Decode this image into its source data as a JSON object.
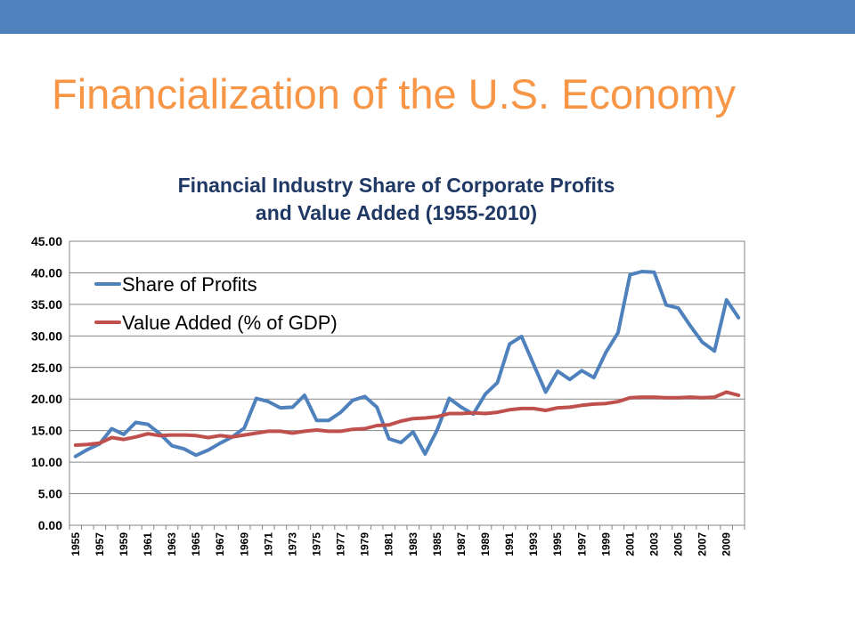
{
  "slide": {
    "title": "Financialization of the U.S. Economy",
    "accent_color": "#4f81bd",
    "title_color": "#f79646"
  },
  "chart_data": {
    "type": "line",
    "title_lines": [
      "Financial Industry Share of Corporate Profits",
      "and Value Added (1955-2010)"
    ],
    "xlabel": "",
    "ylabel": "",
    "ylim": [
      0,
      45
    ],
    "y_ticks": [
      "0.00",
      "5.00",
      "10.00",
      "15.00",
      "20.00",
      "25.00",
      "30.00",
      "35.00",
      "40.00",
      "45.00"
    ],
    "x": [
      1955,
      1956,
      1957,
      1958,
      1959,
      1960,
      1961,
      1962,
      1963,
      1964,
      1965,
      1966,
      1967,
      1968,
      1969,
      1970,
      1971,
      1972,
      1973,
      1974,
      1975,
      1976,
      1977,
      1978,
      1979,
      1980,
      1981,
      1982,
      1983,
      1984,
      1985,
      1986,
      1987,
      1988,
      1989,
      1990,
      1991,
      1992,
      1993,
      1994,
      1995,
      1996,
      1997,
      1998,
      1999,
      2000,
      2001,
      2002,
      2003,
      2004,
      2005,
      2006,
      2007,
      2008,
      2009,
      2010
    ],
    "x_tick_labels": [
      "1955",
      "1957",
      "1959",
      "1961",
      "1963",
      "1965",
      "1967",
      "1969",
      "1971",
      "1973",
      "1975",
      "1977",
      "1979",
      "1981",
      "1983",
      "1985",
      "1987",
      "1989",
      "1991",
      "1993",
      "1995",
      "1997",
      "1999",
      "2001",
      "2003",
      "2005",
      "2007",
      "2009"
    ],
    "grid": true,
    "legend_position": "top-left",
    "series": [
      {
        "name": "Share of Profits",
        "color": "#4f81bd",
        "values": [
          10.9,
          12.0,
          12.9,
          15.3,
          14.4,
          16.3,
          16.0,
          14.5,
          12.6,
          12.1,
          11.1,
          11.9,
          13.0,
          14.0,
          15.4,
          20.1,
          19.6,
          18.6,
          18.7,
          20.6,
          16.6,
          16.6,
          17.9,
          19.8,
          20.4,
          18.7,
          13.7,
          13.1,
          14.8,
          11.3,
          15.1,
          20.1,
          18.7,
          17.6,
          20.8,
          22.6,
          28.7,
          29.9,
          25.5,
          21.1,
          24.4,
          23.1,
          24.5,
          23.4,
          27.4,
          30.5,
          39.7,
          40.2,
          40.1,
          34.9,
          34.4,
          31.6,
          29.0,
          27.6,
          35.7,
          32.9
        ]
      },
      {
        "name": "Value Added (% of GDP)",
        "color": "#c0504d",
        "values": [
          12.7,
          12.8,
          13.0,
          13.9,
          13.6,
          14.0,
          14.5,
          14.2,
          14.3,
          14.3,
          14.2,
          13.9,
          14.2,
          14.0,
          14.3,
          14.6,
          14.9,
          14.9,
          14.6,
          14.9,
          15.1,
          14.9,
          14.9,
          15.2,
          15.3,
          15.8,
          15.9,
          16.5,
          16.9,
          17.0,
          17.2,
          17.7,
          17.7,
          17.8,
          17.7,
          17.9,
          18.3,
          18.5,
          18.5,
          18.2,
          18.6,
          18.7,
          19.0,
          19.2,
          19.3,
          19.6,
          20.2,
          20.3,
          20.3,
          20.2,
          20.2,
          20.3,
          20.2,
          20.3,
          21.1,
          20.6
        ]
      }
    ]
  }
}
